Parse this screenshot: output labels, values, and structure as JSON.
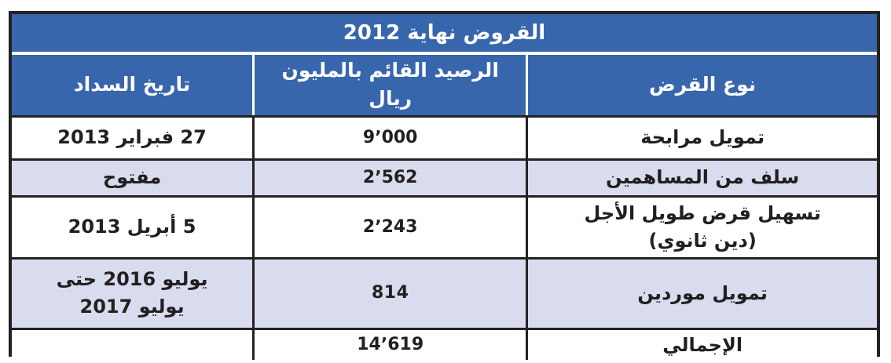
{
  "title": "القروض نهاية 2012",
  "columns": {
    "loan_type": "نوع القرض",
    "balance": "الرصيد القائم بالمليون ريال",
    "repayment_date": "تاريخ السداد"
  },
  "rows": [
    {
      "loan_type": "تمويل مرابحة",
      "balance": "9٬000",
      "repayment_date": "27 فبراير 2013"
    },
    {
      "loan_type": "سلف من المساهمين",
      "balance": "2٬562",
      "repayment_date": "مفتوح"
    },
    {
      "loan_type": "تسهيل قرض طويل الأجل\n(دين ثانوي)",
      "balance": "2٬243",
      "repayment_date": "5 أبريل 2013"
    },
    {
      "loan_type": "تمويل موردين",
      "balance": "814",
      "repayment_date": "يوليو 2016 حتى\nيوليو 2017"
    },
    {
      "loan_type": "الإجمالي",
      "balance": "14٬619",
      "repayment_date": ""
    }
  ],
  "colors": {
    "header_blue": "#3766AD",
    "row_alt": "#D9DCEE",
    "border_dark": "#242122",
    "header_text": "#FFFFFF",
    "body_text": "#231F20",
    "page_bg": "#FFFFFF"
  }
}
